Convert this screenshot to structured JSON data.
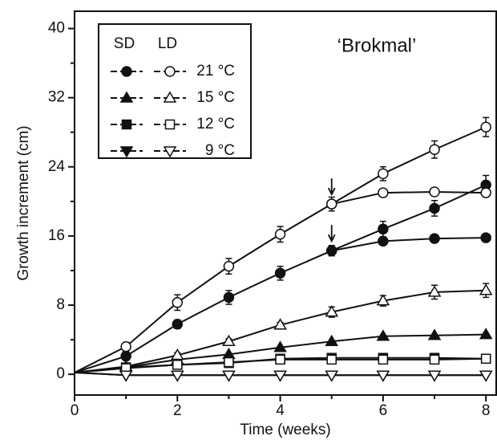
{
  "chart_data": {
    "type": "line",
    "annotation": "‘Brokmal’",
    "x_label": "Time (weeks)",
    "y_label": "Growth increment (cm)",
    "x": [
      0,
      1,
      2,
      3,
      4,
      5,
      6,
      7,
      8
    ],
    "xlim": [
      0,
      8.2
    ],
    "ylim": [
      -2.4,
      42
    ],
    "xticks": [
      0,
      2,
      4,
      6,
      8
    ],
    "xminorticks": [
      1,
      3,
      5,
      7
    ],
    "yticks": [
      0,
      8,
      16,
      24,
      32,
      40
    ],
    "yminorticks": [
      4,
      12,
      20,
      28,
      36
    ],
    "transfer_week": 5,
    "legend_columns": [
      "SD",
      "LD"
    ],
    "color": "#111111",
    "series": [
      {
        "name": "21 °C",
        "marker": "circle",
        "transfer": true,
        "lines": [
          {
            "filled": true,
            "values": [
              0.2,
              2.1,
              5.8,
              8.9,
              11.7,
              14.3,
              16.8,
              19.2,
              21.9
            ],
            "errors": [
              null,
              0.5,
              0.5,
              0.8,
              0.8,
              0.6,
              0.9,
              0.9,
              1.1
            ]
          },
          {
            "filled": false,
            "values": [
              0.2,
              3.2,
              8.3,
              12.5,
              16.2,
              19.7,
              23.2,
              26,
              28.6
            ],
            "errors": [
              null,
              0.5,
              0.9,
              0.9,
              0.9,
              0.8,
              0.8,
              1.0,
              1.1
            ]
          },
          {
            "filled": true,
            "values": [
              null,
              null,
              null,
              null,
              null,
              14.3,
              15.4,
              15.7,
              15.8
            ],
            "errors": [
              null,
              null,
              null,
              null,
              null,
              null,
              0.3,
              0.3,
              0.3
            ]
          },
          {
            "filled": false,
            "values": [
              null,
              null,
              null,
              null,
              null,
              19.7,
              21,
              21.1,
              21
            ],
            "errors": [
              null,
              null,
              null,
              null,
              null,
              null,
              0.3,
              0.3,
              0.3
            ]
          }
        ]
      },
      {
        "name": "15 °C",
        "marker": "triangle",
        "lines": [
          {
            "filled": true,
            "values": [
              0.2,
              0.8,
              1.7,
              2.3,
              3.1,
              3.8,
              4.4,
              4.5,
              4.6
            ]
          },
          {
            "filled": false,
            "values": [
              0.2,
              0.9,
              2.2,
              3.8,
              5.7,
              7.2,
              8.5,
              9.5,
              9.7
            ],
            "errors": [
              null,
              0.2,
              0.3,
              0.3,
              0.3,
              0.6,
              0.6,
              0.8,
              0.8
            ]
          }
        ]
      },
      {
        "name": "12 °C",
        "marker": "square",
        "lines": [
          {
            "filled": true,
            "values": [
              0.2,
              0.8,
              1.1,
              1.3,
              1.8,
              1.9,
              1.9,
              1.9,
              1.8
            ]
          },
          {
            "filled": false,
            "values": [
              0.2,
              0.7,
              1.1,
              1.4,
              1.7,
              1.7,
              1.7,
              1.7,
              1.8
            ]
          }
        ]
      },
      {
        "name": "9 °C",
        "marker": "triangle-down",
        "lines": [
          {
            "filled": true,
            "values": [
              0.2,
              -0.1,
              -0.1,
              -0.1,
              -0.1,
              -0.1,
              -0.1,
              -0.1,
              -0.1
            ]
          },
          {
            "filled": false,
            "values": [
              0.2,
              -0.1,
              -0.1,
              -0.1,
              -0.1,
              -0.1,
              -0.1,
              -0.1,
              -0.1
            ]
          }
        ]
      }
    ]
  }
}
